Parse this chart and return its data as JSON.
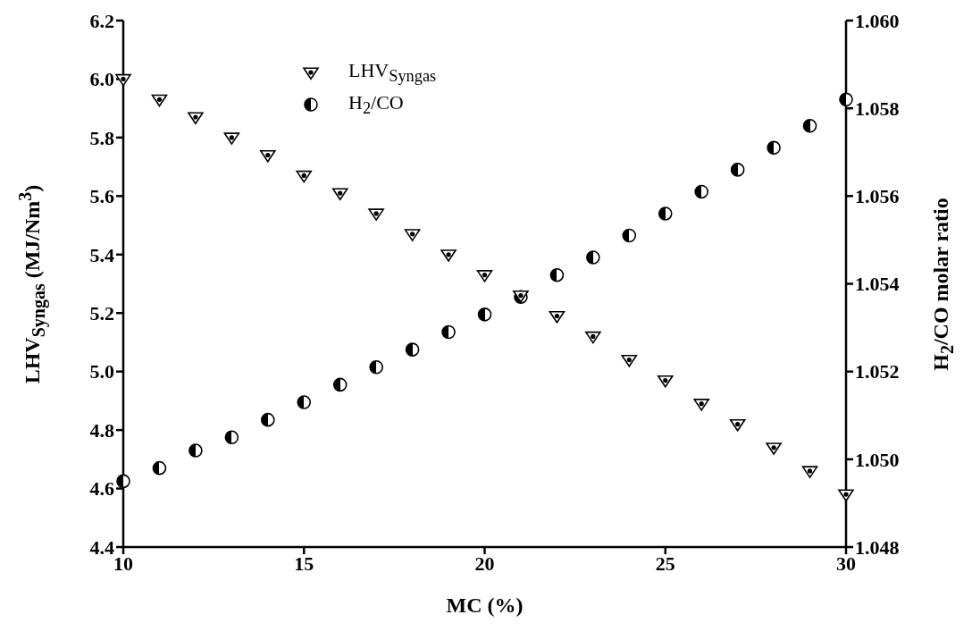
{
  "chart_data": {
    "type": "scatter",
    "xlabel": "MC (%)",
    "ylabel": "LHV$_{Syngas}$ (MJ/Nm$^{3}$)",
    "y2label": "H$_{2}$/CO molar ratio",
    "x": [
      10,
      11,
      12,
      13,
      14,
      15,
      16,
      17,
      18,
      19,
      20,
      21,
      22,
      23,
      24,
      25,
      26,
      27,
      28,
      29,
      30
    ],
    "series": [
      {
        "name": "LHV$_{Syngas}$",
        "color": "#000000",
        "marker": "triangle",
        "values": [
          6.0,
          5.93,
          5.87,
          5.8,
          5.74,
          5.67,
          5.61,
          5.54,
          5.47,
          5.4,
          5.33,
          5.26,
          5.19,
          5.12,
          5.04,
          4.97,
          4.89,
          4.82,
          4.74,
          4.66,
          4.58
        ]
      },
      {
        "name": "H$_{2}$/CO",
        "color": "#000000",
        "marker": "circle",
        "axis": "y2",
        "values": [
          1.0495,
          1.0498,
          1.0502,
          1.0505,
          1.0509,
          1.0513,
          1.0517,
          1.0521,
          1.0525,
          1.0529,
          1.0533,
          1.0537,
          1.0542,
          1.0546,
          1.0551,
          1.0556,
          1.0561,
          1.0566,
          1.0571,
          1.0576,
          1.0582
        ]
      }
    ],
    "xlim": [
      10,
      30
    ],
    "xticks": [
      10,
      15,
      20,
      25,
      30
    ],
    "ylim": [
      4.4,
      6.2
    ],
    "yticks": [
      4.4,
      4.6,
      4.8,
      {
        "value": 5.0,
        "label": "5.0"
      },
      5.2,
      5.4,
      5.6,
      5.8,
      {
        "value": 6.0,
        "label": "6.0"
      },
      6.2
    ],
    "y2lim": [
      1.048,
      1.06
    ],
    "y2ticks": [
      1.048,
      {
        "value": 1.05,
        "label": "1.050"
      },
      1.052,
      1.054,
      1.056,
      1.058,
      {
        "value": 1.06,
        "label": "1.060"
      }
    ],
    "grid": false,
    "legend": "top"
  }
}
